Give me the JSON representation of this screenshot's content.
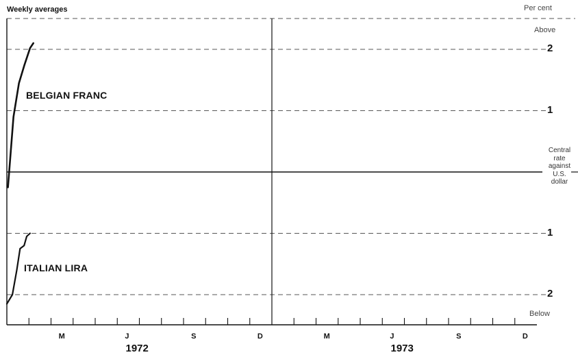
{
  "chart_data": {
    "type": "line",
    "title": "Weekly averages",
    "ylabel": "Per cent",
    "y_top_label": "Above",
    "y_bottom_label": "Below",
    "central_label": [
      "Central",
      "rate",
      "against",
      "U.S.",
      "dollar"
    ],
    "ylim": [
      -2.5,
      2.5
    ],
    "y_ticks": [
      {
        "value": 2,
        "label": "2"
      },
      {
        "value": 1,
        "label": "1"
      },
      {
        "value": -1,
        "label": "1"
      },
      {
        "value": -2,
        "label": "2"
      }
    ],
    "x_range_months": [
      0,
      24
    ],
    "month_ticks": [
      {
        "month": 2.5,
        "label": "M"
      },
      {
        "month": 5.5,
        "label": "J"
      },
      {
        "month": 8.5,
        "label": "S"
      },
      {
        "month": 11.5,
        "label": "D"
      },
      {
        "month": 14.5,
        "label": "M"
      },
      {
        "month": 17.5,
        "label": "J"
      },
      {
        "month": 20.5,
        "label": "S"
      },
      {
        "month": 23.5,
        "label": "D"
      }
    ],
    "years": [
      {
        "label": "1972",
        "center_month": 6
      },
      {
        "label": "1973",
        "center_month": 18
      }
    ],
    "series": [
      {
        "name": "BELGIAN FRANC",
        "color": "#111111",
        "x": [
          0.05,
          0.3,
          0.55,
          0.8,
          1.05,
          1.2
        ],
        "y": [
          -0.25,
          0.9,
          1.45,
          1.75,
          2.02,
          2.1
        ]
      },
      {
        "name": "ITALIAN LIRA",
        "color": "#111111",
        "x": [
          0.0,
          0.25,
          0.45,
          0.6,
          0.78,
          0.9,
          1.05
        ],
        "y": [
          -2.15,
          -2.0,
          -1.6,
          -1.25,
          -1.2,
          -1.05,
          -1.0
        ]
      }
    ],
    "grid": true,
    "legend": "inline labels"
  }
}
